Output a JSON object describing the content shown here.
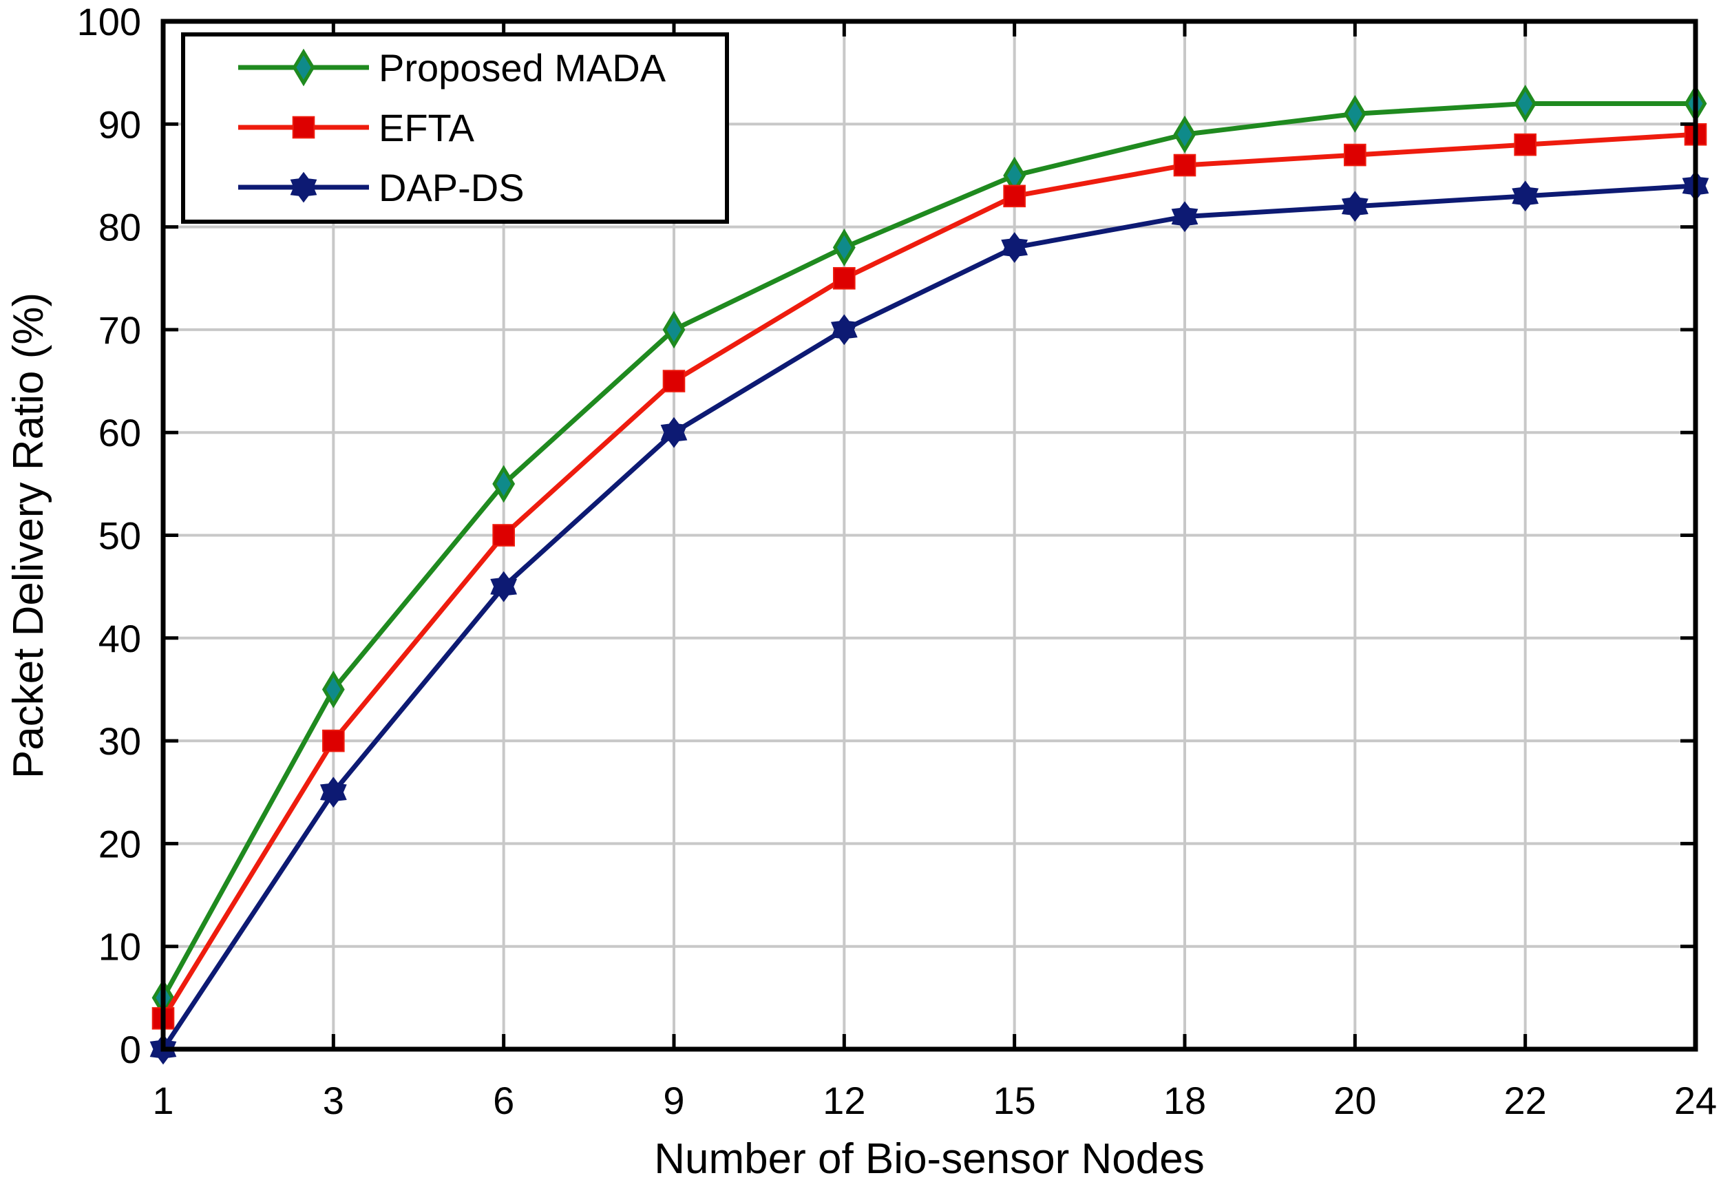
{
  "chart_data": {
    "type": "line",
    "title": "",
    "xlabel": "Number of Bio-sensor Nodes",
    "ylabel": "Packet Delivery Ratio (%)",
    "x": [
      1,
      3,
      6,
      9,
      12,
      15,
      18,
      20,
      22,
      24
    ],
    "x_scale": "categorical-evenly-spaced",
    "ylim": [
      0,
      100
    ],
    "yticks": [
      0,
      10,
      20,
      30,
      40,
      50,
      60,
      70,
      80,
      90,
      100
    ],
    "grid": true,
    "legend_position": "top-left",
    "series": [
      {
        "name": "Proposed MADA",
        "color": "#1f8a1f",
        "marker": "diamond",
        "marker_fill": "#0f8a8a",
        "values": [
          5,
          35,
          55,
          70,
          78,
          85,
          89,
          91,
          92,
          92
        ]
      },
      {
        "name": "EFTA",
        "color": "#ee1c0e",
        "marker": "square",
        "marker_fill": "#dd0000",
        "values": [
          3,
          30,
          50,
          65,
          75,
          83,
          86,
          87,
          88,
          89
        ]
      },
      {
        "name": "DAP-DS",
        "color": "#0d1a73",
        "marker": "star",
        "marker_fill": "#0d1a73",
        "values": [
          0,
          25,
          45,
          60,
          70,
          78,
          81,
          82,
          83,
          84
        ]
      }
    ]
  }
}
